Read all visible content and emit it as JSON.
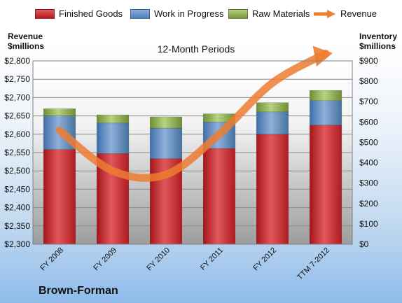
{
  "chart_data": {
    "type": "bar",
    "categories": [
      "FY 2008",
      "FY 2009",
      "FY 2010",
      "FY 2011",
      "FY 2012",
      "TTM 7-2012"
    ],
    "series": [
      {
        "name": "Finished Goods",
        "axis": "right",
        "stack": "inventory",
        "values": [
          465,
          445,
          420,
          470,
          540,
          585
        ],
        "color": "#c82227"
      },
      {
        "name": "Work in Progress",
        "axis": "right",
        "stack": "inventory",
        "values": [
          165,
          150,
          150,
          130,
          110,
          120
        ],
        "color": "#4f81bd"
      },
      {
        "name": "Raw Materials",
        "axis": "right",
        "stack": "inventory",
        "values": [
          35,
          40,
          55,
          40,
          45,
          50
        ],
        "color": "#8aad47"
      },
      {
        "name": "Revenue",
        "axis": "left",
        "type": "line",
        "values": [
          2610,
          2500,
          2490,
          2600,
          2740,
          2820
        ],
        "color": "#ed7d31"
      }
    ],
    "y_left": {
      "title": "Revenue\n$millions",
      "min": 2300,
      "max": 2800,
      "step": 50,
      "tick_prefix": "$"
    },
    "y_right": {
      "title": "Inventory\n$millions",
      "min": 0,
      "max": 900,
      "step": 100,
      "tick_prefix": "$"
    },
    "period_label": "12-Month Periods",
    "legend_position": "top",
    "grid": true
  },
  "legend": [
    {
      "label": "Finished Goods",
      "kind": "bar",
      "color": "#c82227"
    },
    {
      "label": "Work in Progress",
      "kind": "bar",
      "color": "#4f81bd"
    },
    {
      "label": "Raw Materials",
      "kind": "bar",
      "color": "#8aad47"
    },
    {
      "label": "Revenue",
      "kind": "arrow",
      "color": "#ed7d31"
    }
  ],
  "company": "Brown-Forman"
}
